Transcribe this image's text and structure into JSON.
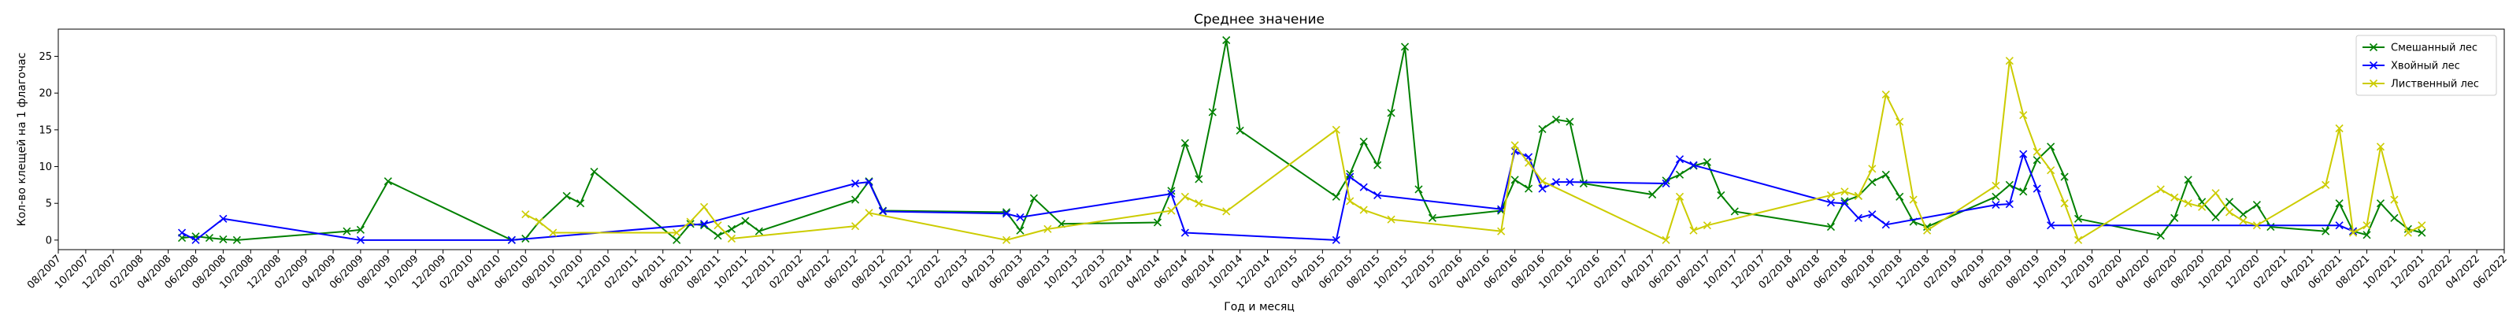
{
  "chart_data": {
    "type": "line",
    "title": "Среднее значение",
    "xlabel": "Год и месяц",
    "ylabel": "Кол-во клещей на 1 флагочас",
    "ylim": [
      -1.3,
      28.7
    ],
    "yticks": [
      0,
      5,
      10,
      15,
      20,
      25
    ],
    "xlim": [
      "2007-08",
      "2022-06"
    ],
    "xticks": [
      "08/2007",
      "10/2007",
      "12/2007",
      "02/2008",
      "04/2008",
      "06/2008",
      "08/2008",
      "10/2008",
      "12/2008",
      "02/2009",
      "04/2009",
      "06/2009",
      "08/2009",
      "10/2009",
      "12/2009",
      "02/2010",
      "04/2010",
      "06/2010",
      "08/2010",
      "10/2010",
      "12/2010",
      "02/2011",
      "04/2011",
      "06/2011",
      "08/2011",
      "10/2011",
      "12/2011",
      "02/2012",
      "04/2012",
      "06/2012",
      "08/2012",
      "10/2012",
      "12/2012",
      "02/2013",
      "04/2013",
      "06/2013",
      "08/2013",
      "10/2013",
      "12/2013",
      "02/2014",
      "04/2014",
      "06/2014",
      "08/2014",
      "10/2014",
      "12/2014",
      "02/2015",
      "04/2015",
      "06/2015",
      "08/2015",
      "10/2015",
      "12/2015",
      "02/2016",
      "04/2016",
      "06/2016",
      "08/2016",
      "10/2016",
      "12/2016",
      "02/2017",
      "04/2017",
      "06/2017",
      "08/2017",
      "10/2017",
      "12/2017",
      "02/2018",
      "04/2018",
      "06/2018",
      "08/2018",
      "10/2018",
      "12/2018",
      "02/2019",
      "04/2019",
      "06/2019",
      "08/2019",
      "10/2019",
      "12/2019",
      "02/2020",
      "04/2020",
      "06/2020",
      "08/2020",
      "10/2020",
      "12/2020",
      "02/2021",
      "04/2021",
      "06/2021",
      "08/2021",
      "10/2021",
      "12/2021",
      "02/2022",
      "04/2022",
      "06/2022"
    ],
    "grid": false,
    "legend_position": "upper right",
    "series": [
      {
        "name": "Смешанный лес",
        "color": "#008000",
        "marker": "x",
        "points": [
          [
            "2008-05",
            0.3
          ],
          [
            "2008-06",
            0.5
          ],
          [
            "2008-07",
            0.3
          ],
          [
            "2008-08",
            0.1
          ],
          [
            "2008-09",
            0.0
          ],
          [
            "2009-05",
            1.2
          ],
          [
            "2009-06",
            1.4
          ],
          [
            "2009-08",
            8.0
          ],
          [
            "2010-05",
            0.0
          ],
          [
            "2010-06",
            0.2
          ],
          [
            "2010-07",
            2.5
          ],
          [
            "2010-09",
            6.0
          ],
          [
            "2010-10",
            5.0
          ],
          [
            "2010-11",
            9.3
          ],
          [
            "2011-05",
            0.0
          ],
          [
            "2011-06",
            2.2
          ],
          [
            "2011-07",
            2.0
          ],
          [
            "2011-08",
            0.6
          ],
          [
            "2011-09",
            1.5
          ],
          [
            "2011-10",
            2.6
          ],
          [
            "2011-11",
            1.2
          ],
          [
            "2012-06",
            5.5
          ],
          [
            "2012-07",
            8.0
          ],
          [
            "2012-08",
            4.0
          ],
          [
            "2013-05",
            3.8
          ],
          [
            "2013-06",
            1.3
          ],
          [
            "2013-07",
            5.7
          ],
          [
            "2013-09",
            2.2
          ],
          [
            "2014-04",
            2.4
          ],
          [
            "2014-05",
            6.7
          ],
          [
            "2014-06",
            13.2
          ],
          [
            "2014-07",
            8.3
          ],
          [
            "2014-08",
            17.4
          ],
          [
            "2014-09",
            27.2
          ],
          [
            "2014-10",
            14.9
          ],
          [
            "2015-05",
            5.9
          ],
          [
            "2015-06",
            9.0
          ],
          [
            "2015-07",
            13.4
          ],
          [
            "2015-08",
            10.2
          ],
          [
            "2015-09",
            17.3
          ],
          [
            "2015-10",
            26.3
          ],
          [
            "2015-11",
            6.9
          ],
          [
            "2015-12",
            3.0
          ],
          [
            "2016-05",
            4.0
          ],
          [
            "2016-06",
            8.2
          ],
          [
            "2016-07",
            7.0
          ],
          [
            "2016-08",
            15.1
          ],
          [
            "2016-09",
            16.4
          ],
          [
            "2016-10",
            16.1
          ],
          [
            "2016-11",
            7.7
          ],
          [
            "2017-04",
            6.2
          ],
          [
            "2017-05",
            8.1
          ],
          [
            "2017-06",
            8.9
          ],
          [
            "2017-07",
            10.1
          ],
          [
            "2017-08",
            10.6
          ],
          [
            "2017-09",
            6.1
          ],
          [
            "2017-10",
            3.9
          ],
          [
            "2018-05",
            1.8
          ],
          [
            "2018-06",
            5.3
          ],
          [
            "2018-07",
            6.0
          ],
          [
            "2018-08",
            7.9
          ],
          [
            "2018-09",
            8.9
          ],
          [
            "2018-10",
            5.9
          ],
          [
            "2018-11",
            2.5
          ],
          [
            "2018-12",
            1.8
          ],
          [
            "2019-05",
            5.9
          ],
          [
            "2019-06",
            7.5
          ],
          [
            "2019-07",
            6.6
          ],
          [
            "2019-08",
            10.9
          ],
          [
            "2019-09",
            12.7
          ],
          [
            "2019-10",
            8.6
          ],
          [
            "2019-11",
            2.9
          ],
          [
            "2020-05",
            0.6
          ],
          [
            "2020-06",
            3.0
          ],
          [
            "2020-07",
            8.2
          ],
          [
            "2020-08",
            5.2
          ],
          [
            "2020-09",
            3.1
          ],
          [
            "2020-10",
            5.2
          ],
          [
            "2020-11",
            3.5
          ],
          [
            "2020-12",
            4.8
          ],
          [
            "2021-01",
            1.8
          ],
          [
            "2021-05",
            1.2
          ],
          [
            "2021-06",
            5.0
          ],
          [
            "2021-07",
            1.2
          ],
          [
            "2021-08",
            0.7
          ],
          [
            "2021-09",
            5.0
          ],
          [
            "2021-10",
            3.0
          ],
          [
            "2021-11",
            1.5
          ],
          [
            "2021-12",
            1.0
          ]
        ]
      },
      {
        "name": "Хвойный лес",
        "color": "#0000ff",
        "marker": "x",
        "points": [
          [
            "2008-05",
            1.0
          ],
          [
            "2008-06",
            0.0
          ],
          [
            "2008-08",
            2.9
          ],
          [
            "2009-06",
            0.0
          ],
          [
            "2010-05",
            0.0
          ],
          [
            "2011-07",
            2.2
          ],
          [
            "2012-06",
            7.7
          ],
          [
            "2012-07",
            7.9
          ],
          [
            "2012-08",
            3.9
          ],
          [
            "2013-05",
            3.6
          ],
          [
            "2013-06",
            3.1
          ],
          [
            "2014-05",
            6.3
          ],
          [
            "2014-06",
            1.0
          ],
          [
            "2015-05",
            0.0
          ],
          [
            "2015-06",
            8.6
          ],
          [
            "2015-07",
            7.2
          ],
          [
            "2015-08",
            6.1
          ],
          [
            "2016-05",
            4.2
          ],
          [
            "2016-06",
            12.1
          ],
          [
            "2016-07",
            11.3
          ],
          [
            "2016-08",
            7.0
          ],
          [
            "2016-09",
            7.9
          ],
          [
            "2016-10",
            7.9
          ],
          [
            "2017-05",
            7.7
          ],
          [
            "2017-06",
            11.0
          ],
          [
            "2017-07",
            10.2
          ],
          [
            "2018-05",
            5.1
          ],
          [
            "2018-06",
            5.0
          ],
          [
            "2018-07",
            3.0
          ],
          [
            "2018-08",
            3.5
          ],
          [
            "2018-09",
            2.1
          ],
          [
            "2019-05",
            4.8
          ],
          [
            "2019-06",
            4.9
          ],
          [
            "2019-07",
            11.7
          ],
          [
            "2019-08",
            7.0
          ],
          [
            "2019-09",
            2.0
          ],
          [
            "2021-06",
            2.0
          ],
          [
            "2021-07",
            1.2
          ]
        ]
      },
      {
        "name": "Лиственный лес",
        "color": "#cccc00",
        "marker": "x",
        "points": [
          [
            "2010-06",
            3.5
          ],
          [
            "2010-07",
            2.5
          ],
          [
            "2010-08",
            1.0
          ],
          [
            "2011-05",
            1.0
          ],
          [
            "2011-06",
            2.5
          ],
          [
            "2011-07",
            4.5
          ],
          [
            "2011-08",
            2.0
          ],
          [
            "2011-09",
            0.2
          ],
          [
            "2012-06",
            1.9
          ],
          [
            "2012-07",
            3.7
          ],
          [
            "2013-05",
            0.0
          ],
          [
            "2013-08",
            1.5
          ],
          [
            "2014-05",
            4.0
          ],
          [
            "2014-06",
            5.9
          ],
          [
            "2014-07",
            5.0
          ],
          [
            "2014-09",
            3.9
          ],
          [
            "2015-05",
            15.0
          ],
          [
            "2015-06",
            5.3
          ],
          [
            "2015-07",
            4.1
          ],
          [
            "2015-09",
            2.8
          ],
          [
            "2016-05",
            1.2
          ],
          [
            "2016-06",
            12.9
          ],
          [
            "2016-07",
            10.5
          ],
          [
            "2016-08",
            8.0
          ],
          [
            "2017-05",
            0.0
          ],
          [
            "2017-06",
            5.9
          ],
          [
            "2017-07",
            1.3
          ],
          [
            "2017-08",
            2.0
          ],
          [
            "2018-05",
            6.1
          ],
          [
            "2018-06",
            6.6
          ],
          [
            "2018-07",
            6.0
          ],
          [
            "2018-08",
            9.7
          ],
          [
            "2018-09",
            19.8
          ],
          [
            "2018-10",
            16.1
          ],
          [
            "2018-11",
            5.5
          ],
          [
            "2018-12",
            1.3
          ],
          [
            "2019-05",
            7.4
          ],
          [
            "2019-06",
            24.4
          ],
          [
            "2019-07",
            17.0
          ],
          [
            "2019-08",
            12.0
          ],
          [
            "2019-09",
            9.5
          ],
          [
            "2019-10",
            5.0
          ],
          [
            "2019-11",
            0.0
          ],
          [
            "2020-05",
            6.9
          ],
          [
            "2020-06",
            5.8
          ],
          [
            "2020-07",
            5.0
          ],
          [
            "2020-08",
            4.5
          ],
          [
            "2020-09",
            6.4
          ],
          [
            "2020-10",
            3.8
          ],
          [
            "2020-11",
            2.6
          ],
          [
            "2020-12",
            2.0
          ],
          [
            "2021-05",
            7.5
          ],
          [
            "2021-06",
            15.2
          ],
          [
            "2021-07",
            1.0
          ],
          [
            "2021-08",
            2.0
          ],
          [
            "2021-09",
            12.7
          ],
          [
            "2021-10",
            5.5
          ],
          [
            "2021-11",
            1.0
          ],
          [
            "2021-12",
            2.0
          ]
        ]
      }
    ]
  }
}
